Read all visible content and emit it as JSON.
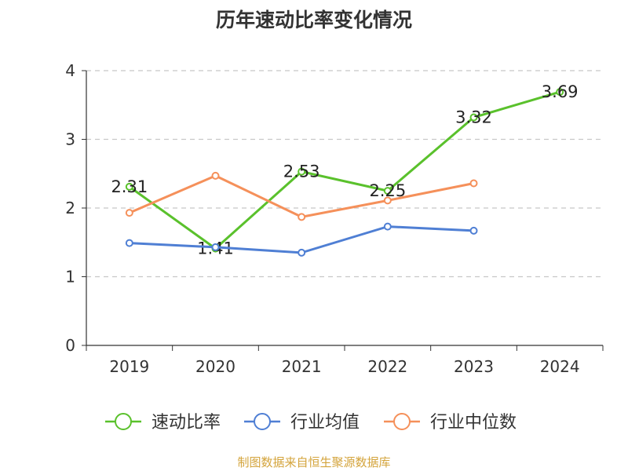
{
  "chart_data": {
    "type": "line",
    "title": "历年速动比率变化情况",
    "categories": [
      "2019",
      "2020",
      "2021",
      "2022",
      "2023",
      "2024"
    ],
    "ylim": [
      0,
      4
    ],
    "yticks": [
      "0",
      "1",
      "2",
      "3",
      "4"
    ],
    "grid": true,
    "legend_position": "bottom",
    "series": [
      {
        "name": "速动比率",
        "color": "#5ac12c",
        "values": [
          2.31,
          1.41,
          2.53,
          2.25,
          3.32,
          3.69
        ],
        "labels": [
          "2.31",
          "1.41",
          "2.53",
          "2.25",
          "3.32",
          "3.69"
        ]
      },
      {
        "name": "行业均值",
        "color": "#4f7fd4",
        "values": [
          1.49,
          1.43,
          1.35,
          1.73,
          1.67,
          null
        ]
      },
      {
        "name": "行业中位数",
        "color": "#f5905a",
        "values": [
          1.93,
          2.47,
          1.87,
          2.11,
          2.36,
          null
        ]
      }
    ]
  },
  "footer": {
    "source": "制图数据来自恒生聚源数据库"
  }
}
